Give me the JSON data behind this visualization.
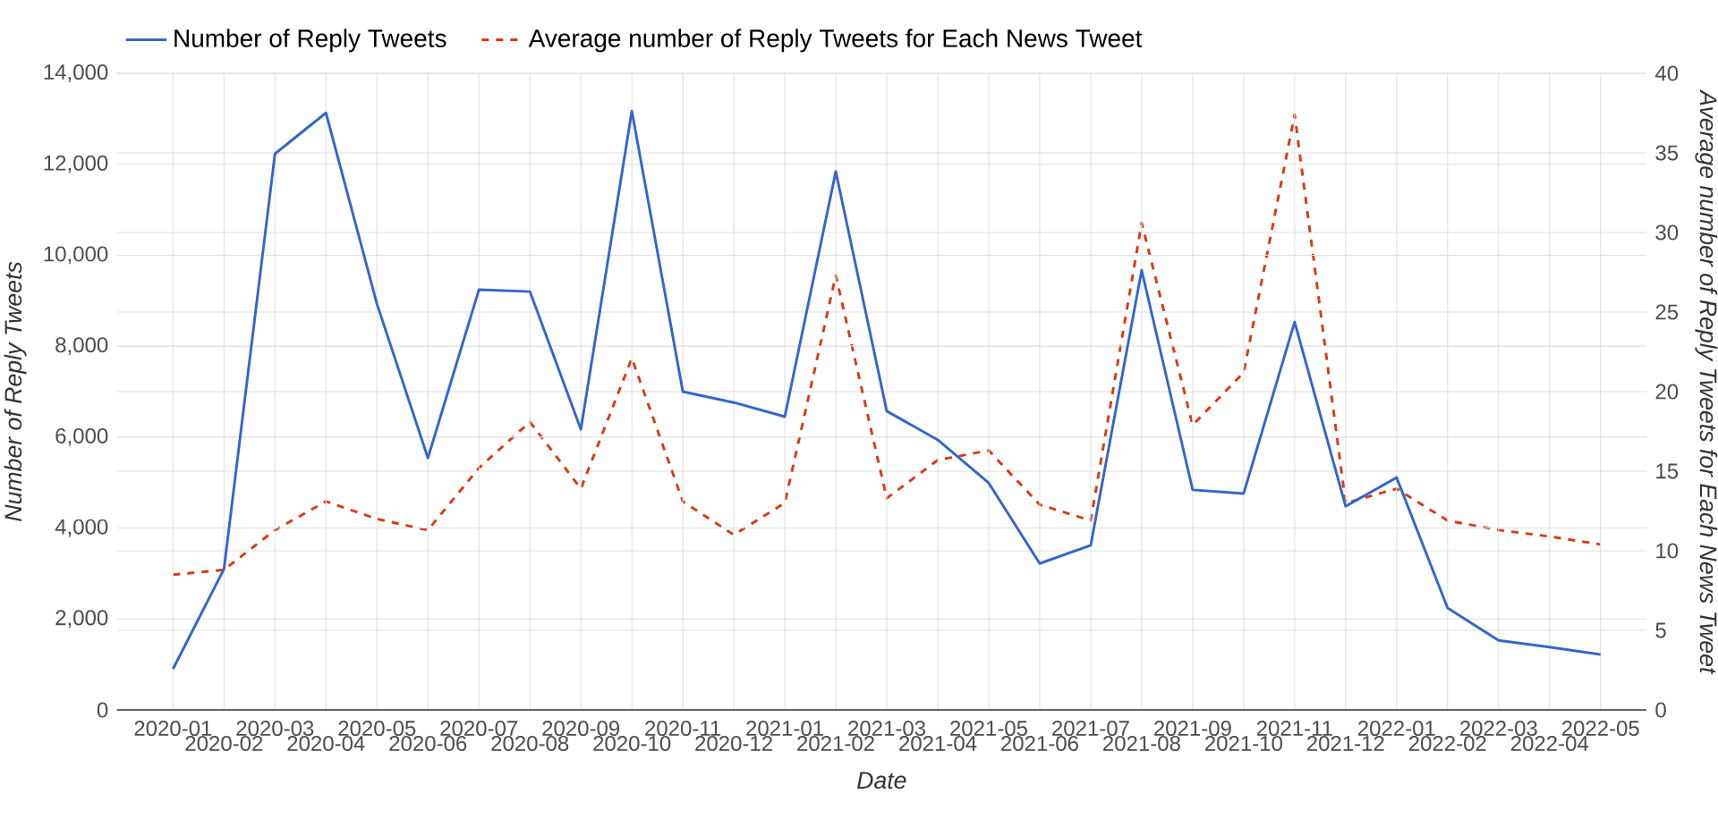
{
  "chart_data": {
    "type": "line",
    "xlabel": "Date",
    "ylabel": "Number of Reply Tweets",
    "y2label": "Average number of Reply Tweets for Each News Tweet",
    "categories": [
      "2020-01",
      "2020-02",
      "2020-03",
      "2020-04",
      "2020-05",
      "2020-06",
      "2020-07",
      "2020-08",
      "2020-09",
      "2020-10",
      "2020-11",
      "2020-12",
      "2021-01",
      "2021-02",
      "2021-03",
      "2021-04",
      "2021-05",
      "2021-06",
      "2021-07",
      "2021-08",
      "2021-09",
      "2021-10",
      "2021-11",
      "2021-12",
      "2022-01",
      "2022-02",
      "2022-03",
      "2022-04",
      "2022-05"
    ],
    "series": [
      {
        "name": "Number of Reply Tweets",
        "color": "#3366cc",
        "line_style": "solid",
        "values": [
          900,
          3100,
          12230,
          13130,
          8930,
          5540,
          9240,
          9200,
          6170,
          13170,
          7000,
          6760,
          6450,
          11840,
          6570,
          5940,
          4990,
          3220,
          3620,
          9670,
          4840,
          4760,
          8530,
          4480,
          5110,
          2240,
          1530,
          1380,
          1220
        ]
      },
      {
        "name": "Average number of Reply Tweets for Each News Tweet",
        "color": "#dc3912",
        "line_style": "dashed",
        "axis": "y2",
        "values": [
          8.5,
          8.8,
          11.3,
          13.1,
          12.0,
          11.3,
          15.2,
          18.1,
          13.9,
          22.1,
          13.1,
          11.0,
          13.0,
          27.3,
          13.3,
          15.7,
          16.3,
          12.9,
          11.9,
          30.6,
          17.9,
          21.2,
          37.4,
          13.0,
          13.9,
          11.9,
          11.3,
          10.9,
          10.4
        ]
      }
    ],
    "ylim": [
      0,
      14000
    ],
    "yticks": [
      0,
      {
        "value": 2000,
        "label": "2,000"
      },
      {
        "value": 4000,
        "label": "4,000"
      },
      {
        "value": 6000,
        "label": "6,000"
      },
      {
        "value": 8000,
        "label": "8,000"
      },
      {
        "value": 10000,
        "label": "10,000"
      },
      {
        "value": 12000,
        "label": "12,000"
      },
      {
        "value": 14000,
        "label": "14,000"
      }
    ],
    "y2lim": [
      0,
      40
    ],
    "y2ticks": [
      0,
      5,
      10,
      15,
      20,
      25,
      30,
      35,
      40
    ],
    "grid": true,
    "legend": "top"
  }
}
